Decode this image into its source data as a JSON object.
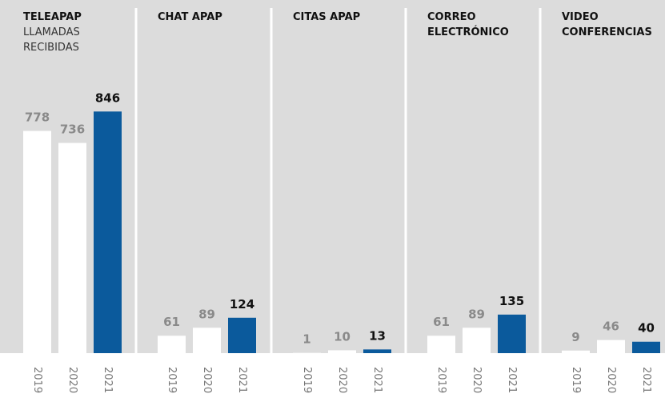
{
  "chart_data": [
    {
      "type": "bar",
      "title": "TELEAPAP",
      "subtitle": "LLAMADAS RECIBIDAS",
      "categories": [
        "2019",
        "2020",
        "2021"
      ],
      "values": [
        778,
        736,
        846
      ],
      "colors": [
        "#ffffff",
        "#ffffff",
        "#0b5a9c"
      ],
      "label_colors": [
        "#8a8a8a",
        "#8a8a8a",
        "#111111"
      ],
      "ylim": [
        0,
        1200
      ]
    },
    {
      "type": "bar",
      "title": "CHAT APAP",
      "categories": [
        "2019",
        "2020",
        "2021"
      ],
      "values": [
        61,
        89,
        124
      ],
      "colors": [
        "#ffffff",
        "#ffffff",
        "#0b5a9c"
      ],
      "label_colors": [
        "#8a8a8a",
        "#8a8a8a",
        "#111111"
      ],
      "ylim": [
        0,
        1200
      ]
    },
    {
      "type": "bar",
      "title": "CITAS APAP",
      "categories": [
        "2019",
        "2020",
        "2021"
      ],
      "values": [
        1,
        10,
        13
      ],
      "colors": [
        "#ffffff",
        "#ffffff",
        "#0b5a9c"
      ],
      "label_colors": [
        "#8a8a8a",
        "#8a8a8a",
        "#111111"
      ],
      "ylim": [
        0,
        1200
      ]
    },
    {
      "type": "bar",
      "title": "CORREO ELECTRÓNICO",
      "categories": [
        "2019",
        "2020",
        "2021"
      ],
      "values": [
        61,
        89,
        135
      ],
      "colors": [
        "#ffffff",
        "#ffffff",
        "#0b5a9c"
      ],
      "label_colors": [
        "#8a8a8a",
        "#8a8a8a",
        "#111111"
      ],
      "ylim": [
        0,
        1200
      ]
    },
    {
      "type": "bar",
      "title": "VIDEO CONFERENCIAS",
      "categories": [
        "2019",
        "2020",
        "2021"
      ],
      "values": [
        9,
        46,
        40
      ],
      "colors": [
        "#ffffff",
        "#ffffff",
        "#0b5a9c"
      ],
      "label_colors": [
        "#8a8a8a",
        "#8a8a8a",
        "#111111"
      ],
      "ylim": [
        0,
        1200
      ]
    }
  ]
}
